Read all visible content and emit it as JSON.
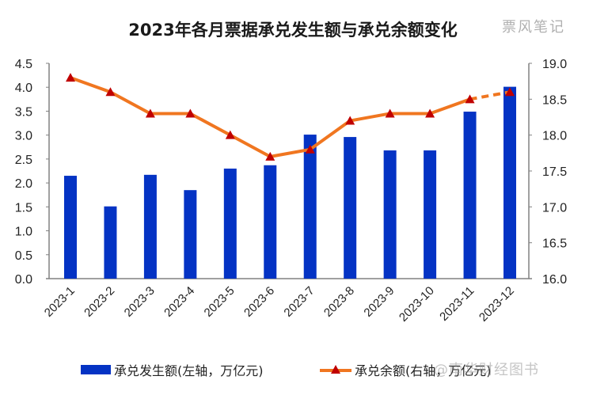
{
  "chart": {
    "title": "2023年各月票据承兑发生额与承兑余额变化",
    "brand": "票风笔记",
    "watermark": "@南华财经图书"
  },
  "legend": {
    "bar_label": "承兑发生额(左轴，万亿元)",
    "line_label": "承兑余额(右轴，万亿元)"
  },
  "colors": {
    "bar": "#0433C4",
    "line": "#F07620",
    "marker": "#C00000",
    "axis": "#808080"
  },
  "chart_data": {
    "type": "bar",
    "title": "2023年各月票据承兑发生额与承兑余额变化",
    "categories": [
      "2023-1",
      "2023-2",
      "2023-3",
      "2023-4",
      "2023-5",
      "2023-6",
      "2023-7",
      "2023-8",
      "2023-9",
      "2023-10",
      "2023-11",
      "2023-12"
    ],
    "series": [
      {
        "name": "承兑发生额(左轴，万亿元)",
        "type": "bar",
        "axis": "left",
        "values": [
          2.15,
          1.51,
          2.17,
          1.85,
          2.3,
          2.37,
          3.01,
          2.96,
          2.68,
          2.68,
          3.49,
          4.01
        ]
      },
      {
        "name": "承兑余额(右轴，万亿元)",
        "type": "line",
        "axis": "right",
        "values": [
          18.8,
          18.6,
          18.3,
          18.3,
          18.0,
          17.7,
          17.8,
          18.2,
          18.3,
          18.3,
          18.5,
          18.6
        ],
        "dashed_last_segment": true
      }
    ],
    "xlabel": "",
    "ylabel_left": "",
    "ylabel_right": "",
    "ylim_left": [
      0,
      4.5
    ],
    "ylim_right": [
      16.0,
      19.0
    ],
    "yticks_left": [
      "0.0",
      "0.5",
      "1.0",
      "1.5",
      "2.0",
      "2.5",
      "3.0",
      "3.5",
      "4.0",
      "4.5"
    ],
    "yticks_right": [
      "16.0",
      "16.5",
      "17.0",
      "17.5",
      "18.0",
      "18.5",
      "19.0"
    ],
    "grid": false,
    "legend_position": "bottom"
  }
}
